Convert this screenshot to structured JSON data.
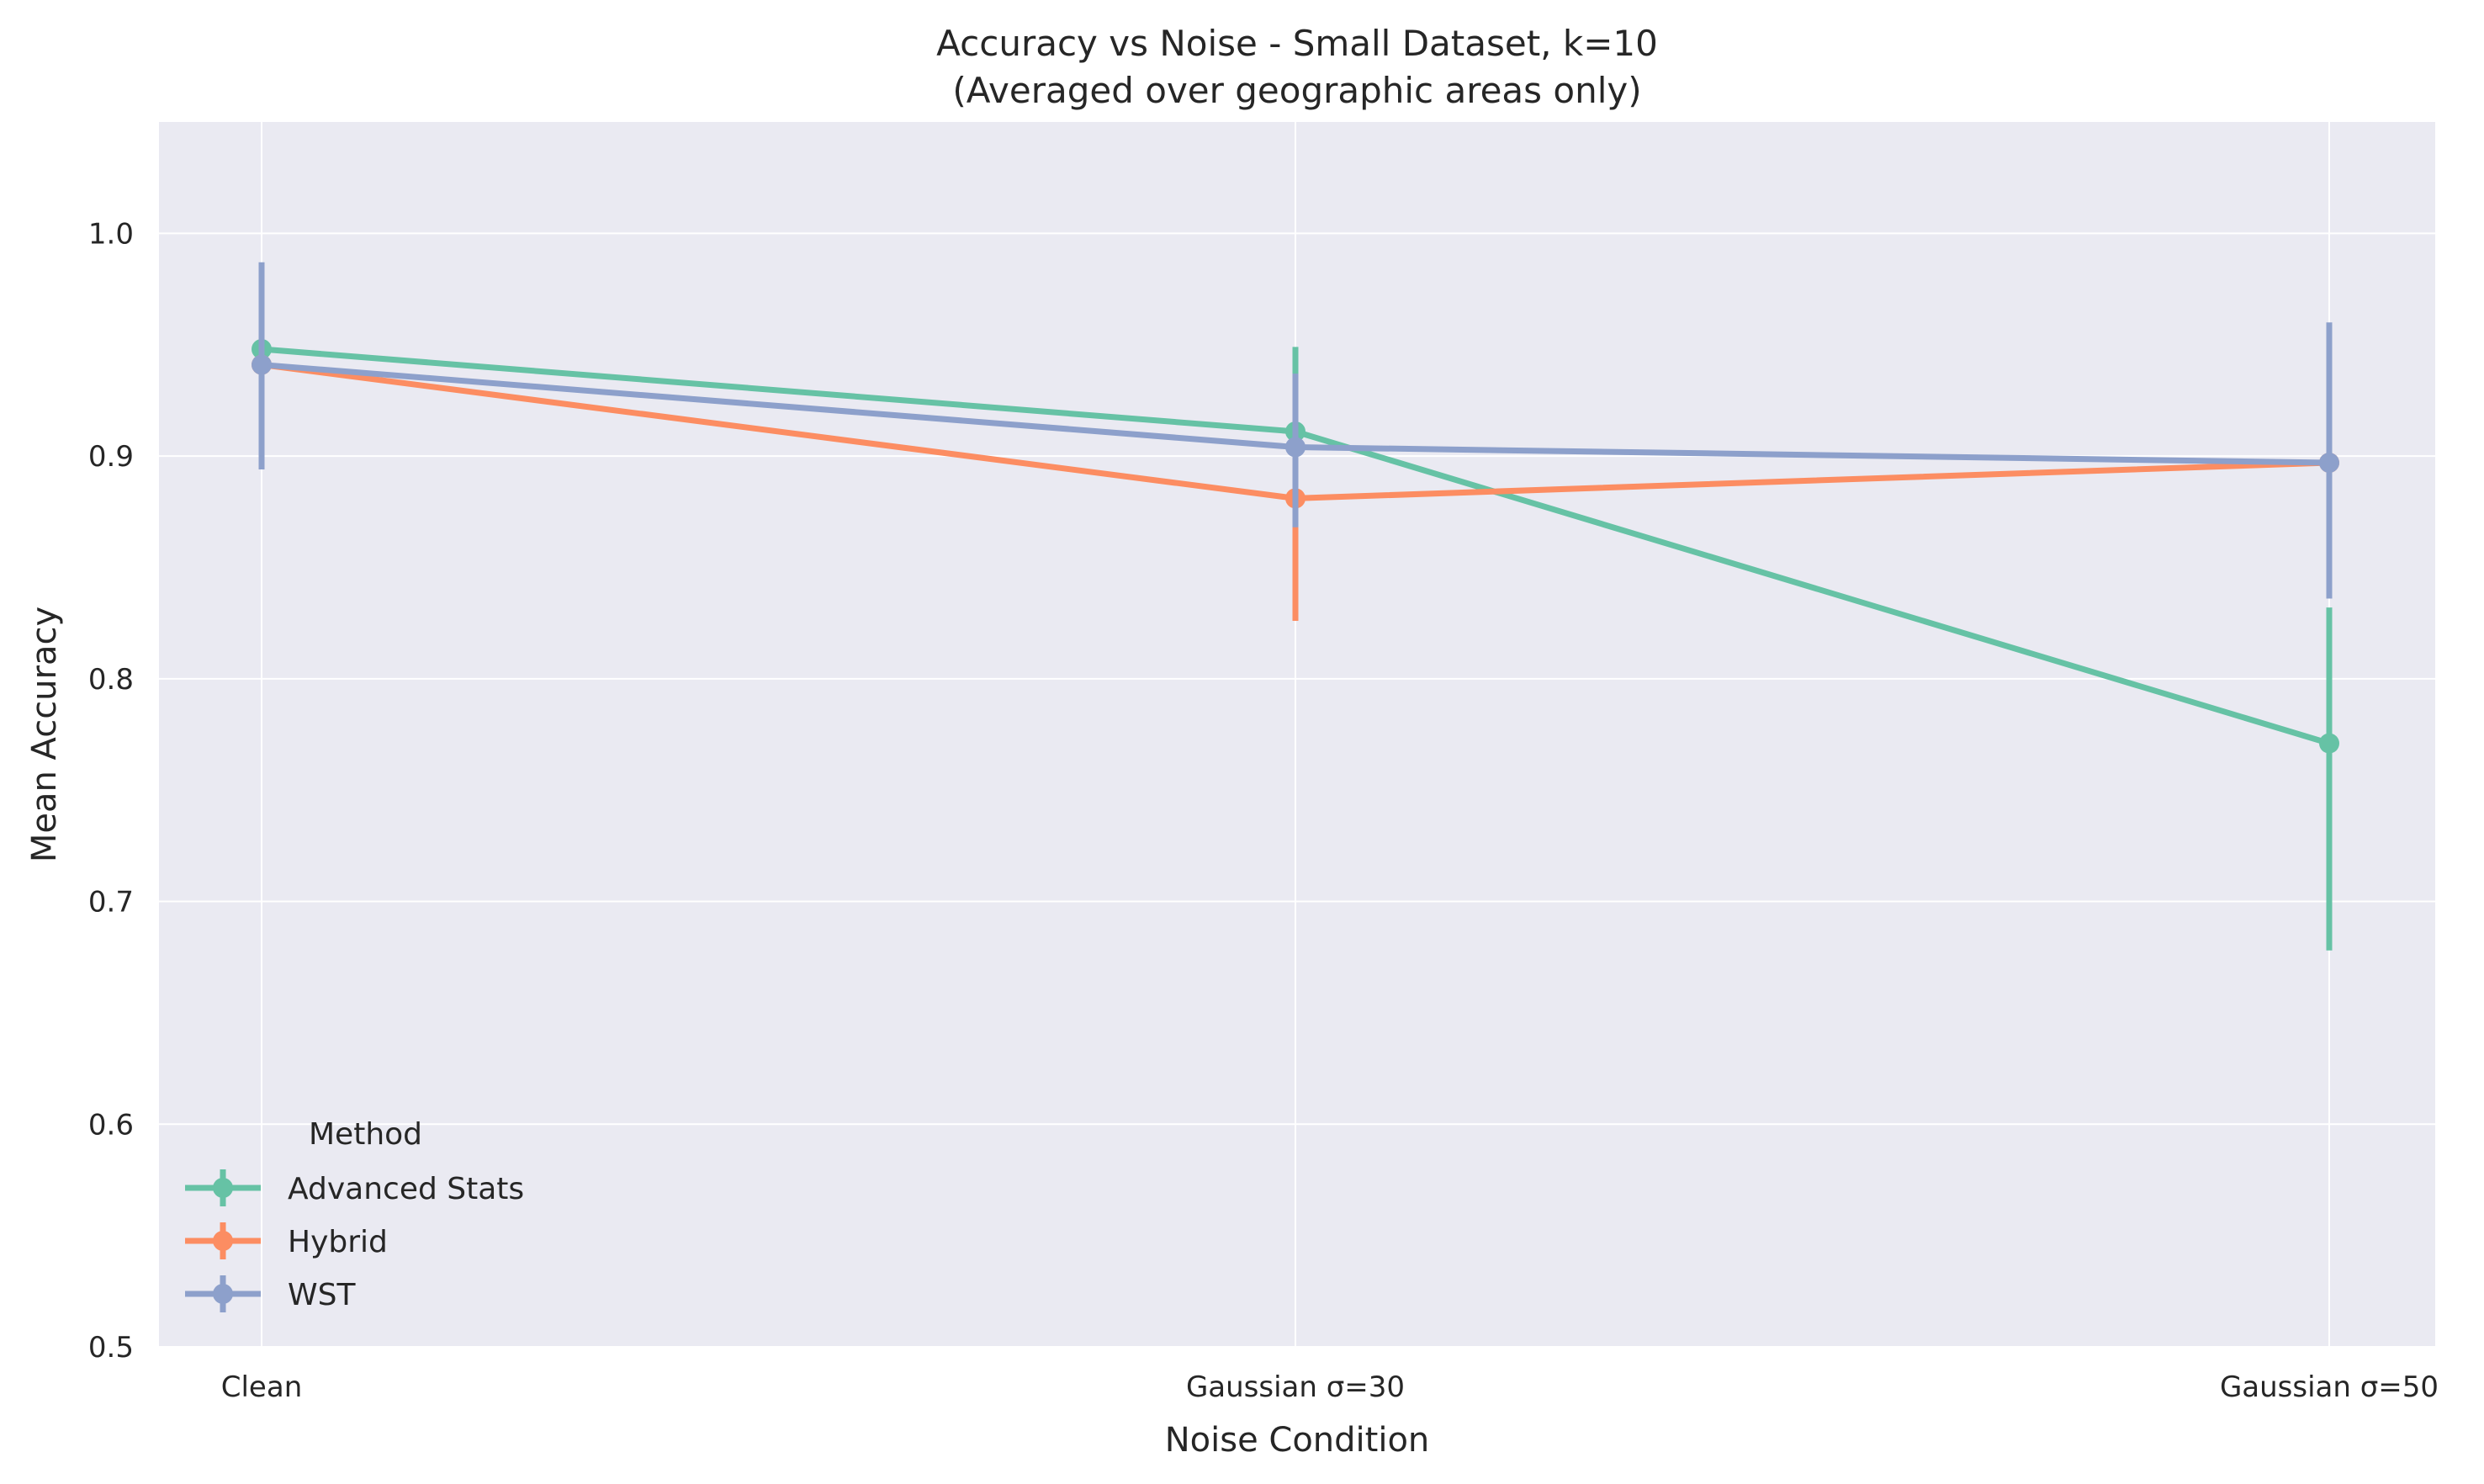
{
  "chart_data": {
    "type": "line",
    "title": "Accuracy vs Noise - Small Dataset, k=10",
    "subtitle": "(Averaged over geographic areas only)",
    "xlabel": "Noise Condition",
    "ylabel": "Mean Accuracy",
    "categories": [
      "Clean",
      "Gaussian σ=30",
      "Gaussian σ=50"
    ],
    "ylim": [
      0.5,
      1.05
    ],
    "yticks": [
      0.5,
      0.6,
      0.7,
      0.8,
      0.9,
      1.0
    ],
    "ytick_labels": [
      "0.5",
      "0.6",
      "0.7",
      "0.8",
      "0.9",
      "1.0"
    ],
    "grid": true,
    "legend": {
      "title": "Method",
      "placement": "lower-left"
    },
    "series": [
      {
        "name": "Advanced Stats",
        "color": "#66c2a5",
        "values": [
          0.948,
          0.911,
          0.771
        ],
        "err_low": [
          0.948,
          0.875,
          0.678
        ],
        "err_high": [
          0.948,
          0.949,
          0.832
        ]
      },
      {
        "name": "Hybrid",
        "color": "#fc8d62",
        "values": [
          0.941,
          0.881,
          0.897
        ],
        "err_low": [
          0.941,
          0.826,
          0.897
        ],
        "err_high": [
          0.941,
          0.881,
          0.897
        ]
      },
      {
        "name": "WST",
        "color": "#8da0cb",
        "values": [
          0.941,
          0.904,
          0.897
        ],
        "err_low": [
          0.894,
          0.868,
          0.836
        ],
        "err_high": [
          0.987,
          0.937,
          0.96
        ]
      }
    ]
  }
}
